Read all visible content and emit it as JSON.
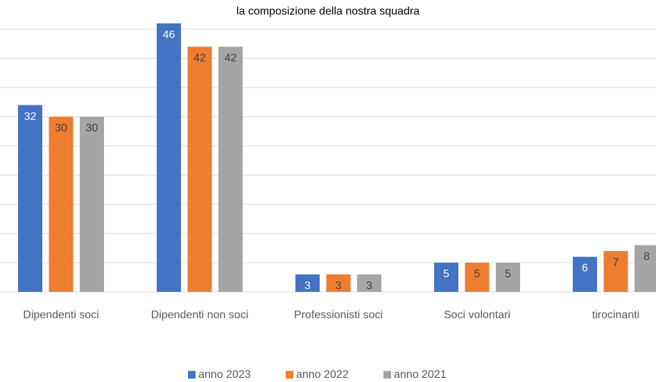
{
  "chart_data": {
    "type": "bar",
    "title": "la composizione della nostra squadra",
    "categories": [
      "Dipendenti soci",
      "Dipendenti non soci",
      "Professionisti soci",
      "Soci volontari",
      "tirocinanti"
    ],
    "series": [
      {
        "name": "anno 2023",
        "color": "#4472c4",
        "values": [
          32,
          46,
          3,
          5,
          6
        ]
      },
      {
        "name": "anno 2022",
        "color": "#ed7d31",
        "values": [
          30,
          42,
          3,
          5,
          7
        ]
      },
      {
        "name": "anno 2021",
        "color": "#a5a5a5",
        "values": [
          30,
          42,
          3,
          5,
          8
        ]
      }
    ],
    "ylim": [
      0,
      50
    ],
    "yticks": [
      0,
      5,
      10,
      15,
      20,
      25,
      30,
      35,
      40,
      45
    ],
    "grid": true,
    "legend": "bottom"
  }
}
